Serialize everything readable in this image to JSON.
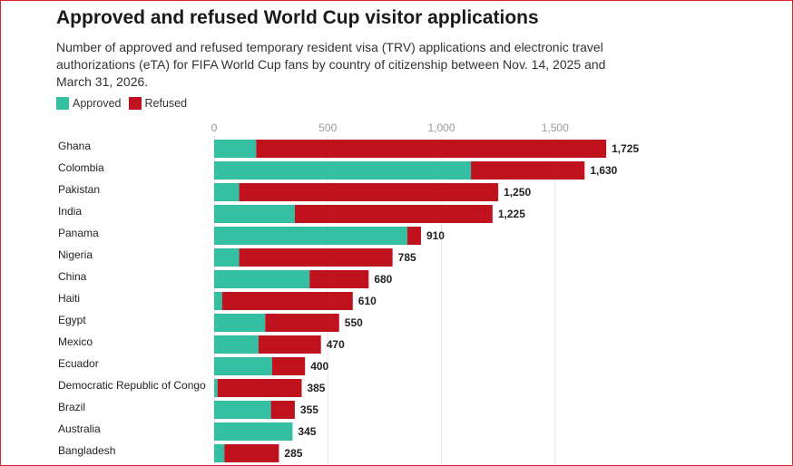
{
  "title": "Approved and refused World Cup visitor applications",
  "subtitle": "Number of approved and refused temporary resident visa (TRV) applications and electronic travel authorizations (eTA) for FIFA World Cup fans by country of citizenship between Nov. 14, 2025 and March 31, 2026.",
  "colors": {
    "approved": "#34bfa3",
    "refused": "#c0111f",
    "grid": "#e6e6e6"
  },
  "chart_data": {
    "type": "bar",
    "orientation": "horizontal",
    "stacked": true,
    "title": "Approved and refused World Cup visitor applications",
    "subtitle": "Number of approved and refused temporary resident visa (TRV) applications and electronic travel authorizations (eTA) for FIFA World Cup fans by country of citizenship between Nov. 14, 2025 and March 31, 2026.",
    "xlim": [
      0,
      1725
    ],
    "xticks": [
      0,
      500,
      1000,
      1500
    ],
    "xtick_labels": [
      "0",
      "500",
      "1,000",
      "1,500"
    ],
    "grid": true,
    "legend_position": "top-left",
    "categories": [
      "Ghana",
      "Colombia",
      "Pakistan",
      "India",
      "Panama",
      "Nigeria",
      "China",
      "Haiti",
      "Egypt",
      "Mexico",
      "Ecuador",
      "Democratic Republic of Congo",
      "Brazil",
      "Australia",
      "Bangladesh"
    ],
    "series": [
      {
        "name": "Approved",
        "values": [
          185,
          1130,
          110,
          355,
          850,
          110,
          420,
          35,
          225,
          195,
          255,
          15,
          250,
          345,
          45
        ]
      },
      {
        "name": "Refused",
        "values": [
          1540,
          500,
          1140,
          870,
          60,
          675,
          260,
          575,
          325,
          275,
          145,
          370,
          105,
          0,
          240
        ]
      }
    ],
    "totals": [
      1725,
      1630,
      1250,
      1225,
      910,
      785,
      680,
      610,
      550,
      470,
      400,
      385,
      355,
      345,
      285
    ],
    "total_labels": [
      "1,725",
      "1,630",
      "1,250",
      "1,225",
      "910",
      "785",
      "680",
      "610",
      "550",
      "470",
      "400",
      "385",
      "355",
      "345",
      "285"
    ]
  }
}
